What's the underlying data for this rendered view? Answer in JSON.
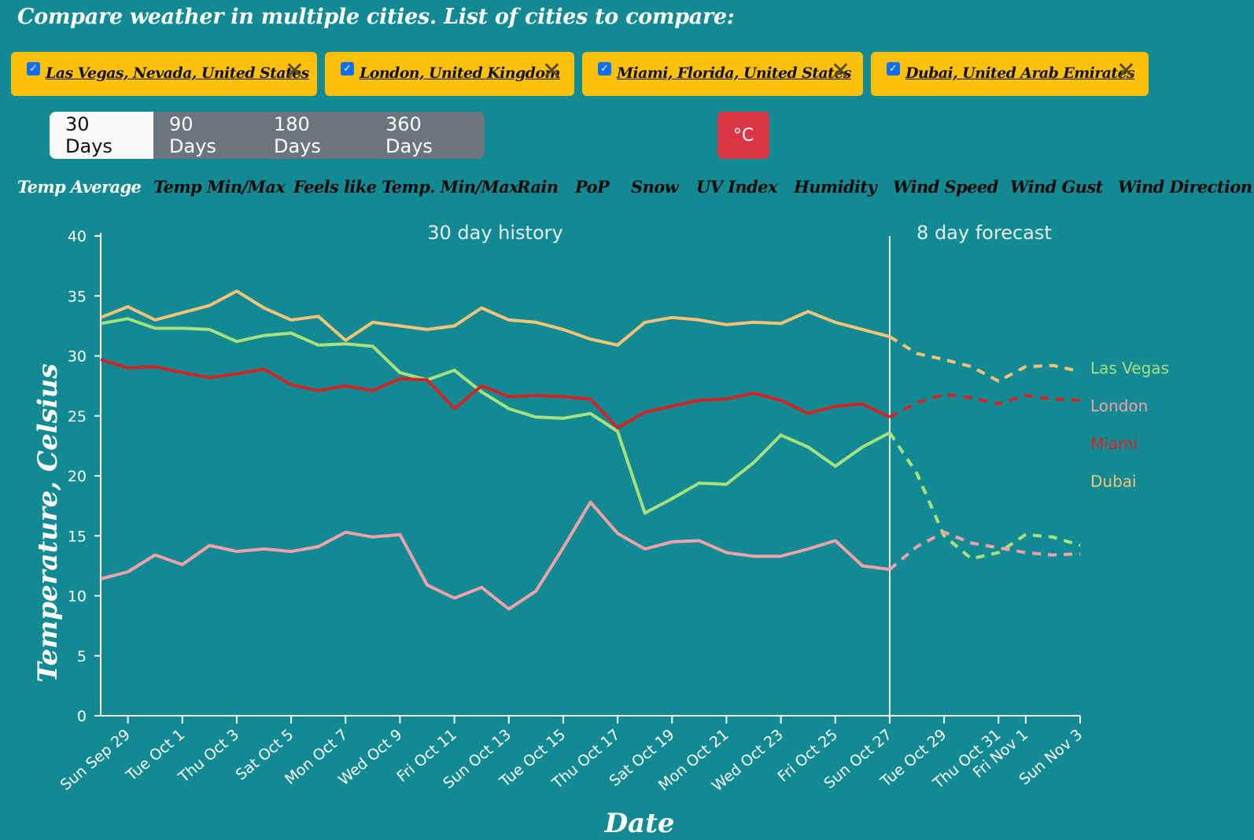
{
  "heading": "Compare weather in multiple cities. List of cities to compare:",
  "cities": [
    {
      "label": "Las Vegas, Nevada, United States",
      "checked": true
    },
    {
      "label": "London, United Kingdom",
      "checked": true
    },
    {
      "label": "Miami, Florida, United States",
      "checked": true
    },
    {
      "label": "Dubai, United Arab Emirates",
      "checked": true
    }
  ],
  "range_buttons": [
    "30 Days",
    "90 Days",
    "180 Days",
    "360 Days"
  ],
  "range_selected": "30 Days",
  "unit_button": "°C",
  "metric_tabs": [
    "Temp Average",
    "Temp Min/Max",
    "Feels like Temp. Min/Max",
    "Rain",
    "PoP",
    "Snow",
    "UV Index",
    "Humidity",
    "Wind Speed",
    "Wind Gust",
    "Wind Direction"
  ],
  "metric_selected": "Temp Average",
  "colors": {
    "background": "#118a93",
    "chip": "#ffc107",
    "unit": "#dc3545"
  },
  "chart_data": {
    "type": "line",
    "history_label": "30 day history",
    "forecast_label": "8 day forecast",
    "xlabel": "Date",
    "ylabel": "Temperature, Celsius",
    "ylim": [
      0,
      40
    ],
    "yticks": [
      0,
      5,
      10,
      15,
      20,
      25,
      30,
      35,
      40
    ],
    "x_start": "2024-09-28",
    "x_end": "2024-11-03",
    "split_date": "2024-10-27",
    "xticks": [
      {
        "date": "2024-09-29",
        "label": "Sun Sep 29"
      },
      {
        "date": "2024-10-01",
        "label": "Tue Oct 1"
      },
      {
        "date": "2024-10-03",
        "label": "Thu Oct 3"
      },
      {
        "date": "2024-10-05",
        "label": "Sat Oct 5"
      },
      {
        "date": "2024-10-07",
        "label": "Mon Oct 7"
      },
      {
        "date": "2024-10-09",
        "label": "Wed Oct 9"
      },
      {
        "date": "2024-10-11",
        "label": "Fri Oct 11"
      },
      {
        "date": "2024-10-13",
        "label": "Sun Oct 13"
      },
      {
        "date": "2024-10-15",
        "label": "Tue Oct 15"
      },
      {
        "date": "2024-10-17",
        "label": "Thu Oct 17"
      },
      {
        "date": "2024-10-19",
        "label": "Sat Oct 19"
      },
      {
        "date": "2024-10-21",
        "label": "Mon Oct 21"
      },
      {
        "date": "2024-10-23",
        "label": "Wed Oct 23"
      },
      {
        "date": "2024-10-25",
        "label": "Fri Oct 25"
      },
      {
        "date": "2024-10-27",
        "label": "Sun Oct 27"
      },
      {
        "date": "2024-10-29",
        "label": "Tue Oct 29"
      },
      {
        "date": "2024-10-31",
        "label": "Thu Oct 31"
      },
      {
        "date": "2024-11-01",
        "label": "Fri Nov 1"
      },
      {
        "date": "2024-11-03",
        "label": "Sun Nov 3"
      }
    ],
    "series": [
      {
        "name": "Las Vegas",
        "color": "#a8e07e",
        "history": [
          [
            "2024-09-28",
            32.7
          ],
          [
            "2024-09-29",
            33.1
          ],
          [
            "2024-09-30",
            32.3
          ],
          [
            "2024-10-01",
            32.3
          ],
          [
            "2024-10-02",
            32.2
          ],
          [
            "2024-10-03",
            31.2
          ],
          [
            "2024-10-04",
            31.7
          ],
          [
            "2024-10-05",
            31.9
          ],
          [
            "2024-10-06",
            30.9
          ],
          [
            "2024-10-07",
            31.0
          ],
          [
            "2024-10-08",
            30.8
          ],
          [
            "2024-10-09",
            28.6
          ],
          [
            "2024-10-10",
            28.0
          ],
          [
            "2024-10-11",
            28.8
          ],
          [
            "2024-10-12",
            27.0
          ],
          [
            "2024-10-13",
            25.6
          ],
          [
            "2024-10-14",
            24.9
          ],
          [
            "2024-10-15",
            24.8
          ],
          [
            "2024-10-16",
            25.2
          ],
          [
            "2024-10-17",
            23.7
          ],
          [
            "2024-10-18",
            16.9
          ],
          [
            "2024-10-19",
            18.1
          ],
          [
            "2024-10-20",
            19.4
          ],
          [
            "2024-10-21",
            19.3
          ],
          [
            "2024-10-22",
            21.1
          ],
          [
            "2024-10-23",
            23.4
          ],
          [
            "2024-10-24",
            22.4
          ],
          [
            "2024-10-25",
            20.8
          ],
          [
            "2024-10-26",
            22.4
          ],
          [
            "2024-10-27",
            23.6
          ]
        ],
        "forecast": [
          [
            "2024-10-27",
            23.6
          ],
          [
            "2024-10-28",
            20.2
          ],
          [
            "2024-10-29",
            15.0
          ],
          [
            "2024-10-30",
            13.1
          ],
          [
            "2024-10-31",
            13.6
          ],
          [
            "2024-11-01",
            15.1
          ],
          [
            "2024-11-02",
            14.9
          ],
          [
            "2024-11-03",
            14.2
          ]
        ]
      },
      {
        "name": "London",
        "color": "#f2a2a8",
        "history": [
          [
            "2024-09-28",
            11.4
          ],
          [
            "2024-09-29",
            12.0
          ],
          [
            "2024-09-30",
            13.4
          ],
          [
            "2024-10-01",
            12.6
          ],
          [
            "2024-10-02",
            14.2
          ],
          [
            "2024-10-03",
            13.7
          ],
          [
            "2024-10-04",
            13.9
          ],
          [
            "2024-10-05",
            13.7
          ],
          [
            "2024-10-06",
            14.1
          ],
          [
            "2024-10-07",
            15.3
          ],
          [
            "2024-10-08",
            14.9
          ],
          [
            "2024-10-09",
            15.1
          ],
          [
            "2024-10-10",
            10.9
          ],
          [
            "2024-10-11",
            9.8
          ],
          [
            "2024-10-12",
            10.7
          ],
          [
            "2024-10-13",
            8.9
          ],
          [
            "2024-10-14",
            10.4
          ],
          [
            "2024-10-15",
            14.0
          ],
          [
            "2024-10-16",
            17.8
          ],
          [
            "2024-10-17",
            15.2
          ],
          [
            "2024-10-18",
            13.9
          ],
          [
            "2024-10-19",
            14.5
          ],
          [
            "2024-10-20",
            14.6
          ],
          [
            "2024-10-21",
            13.6
          ],
          [
            "2024-10-22",
            13.3
          ],
          [
            "2024-10-23",
            13.3
          ],
          [
            "2024-10-24",
            13.9
          ],
          [
            "2024-10-25",
            14.6
          ],
          [
            "2024-10-26",
            12.5
          ],
          [
            "2024-10-27",
            12.2
          ]
        ],
        "forecast": [
          [
            "2024-10-27",
            12.2
          ],
          [
            "2024-10-28",
            14.1
          ],
          [
            "2024-10-29",
            15.3
          ],
          [
            "2024-10-30",
            14.4
          ],
          [
            "2024-10-31",
            14.0
          ],
          [
            "2024-11-01",
            13.6
          ],
          [
            "2024-11-02",
            13.4
          ],
          [
            "2024-11-03",
            13.5
          ]
        ]
      },
      {
        "name": "Miami",
        "color": "#d42323",
        "history": [
          [
            "2024-09-28",
            29.7
          ],
          [
            "2024-09-29",
            29.0
          ],
          [
            "2024-09-30",
            29.1
          ],
          [
            "2024-10-01",
            28.6
          ],
          [
            "2024-10-02",
            28.2
          ],
          [
            "2024-10-03",
            28.5
          ],
          [
            "2024-10-04",
            28.9
          ],
          [
            "2024-10-05",
            27.6
          ],
          [
            "2024-10-06",
            27.1
          ],
          [
            "2024-10-07",
            27.5
          ],
          [
            "2024-10-08",
            27.1
          ],
          [
            "2024-10-09",
            28.1
          ],
          [
            "2024-10-10",
            28.0
          ],
          [
            "2024-10-11",
            25.6
          ],
          [
            "2024-10-12",
            27.5
          ],
          [
            "2024-10-13",
            26.6
          ],
          [
            "2024-10-14",
            26.7
          ],
          [
            "2024-10-15",
            26.6
          ],
          [
            "2024-10-16",
            26.4
          ],
          [
            "2024-10-17",
            24.0
          ],
          [
            "2024-10-18",
            25.3
          ],
          [
            "2024-10-19",
            25.8
          ],
          [
            "2024-10-20",
            26.3
          ],
          [
            "2024-10-21",
            26.4
          ],
          [
            "2024-10-22",
            26.9
          ],
          [
            "2024-10-23",
            26.3
          ],
          [
            "2024-10-24",
            25.2
          ],
          [
            "2024-10-25",
            25.8
          ],
          [
            "2024-10-26",
            26.0
          ],
          [
            "2024-10-27",
            24.9
          ]
        ],
        "forecast": [
          [
            "2024-10-27",
            24.9
          ],
          [
            "2024-10-28",
            26.1
          ],
          [
            "2024-10-29",
            26.8
          ],
          [
            "2024-10-30",
            26.5
          ],
          [
            "2024-10-31",
            26.0
          ],
          [
            "2024-11-01",
            26.7
          ],
          [
            "2024-11-02",
            26.4
          ],
          [
            "2024-11-03",
            26.3
          ]
        ]
      },
      {
        "name": "Dubai",
        "color": "#f7c377",
        "history": [
          [
            "2024-09-28",
            33.2
          ],
          [
            "2024-09-29",
            34.1
          ],
          [
            "2024-09-30",
            33.0
          ],
          [
            "2024-10-01",
            33.6
          ],
          [
            "2024-10-02",
            34.2
          ],
          [
            "2024-10-03",
            35.4
          ],
          [
            "2024-10-04",
            34.0
          ],
          [
            "2024-10-05",
            33.0
          ],
          [
            "2024-10-06",
            33.3
          ],
          [
            "2024-10-07",
            31.3
          ],
          [
            "2024-10-08",
            32.8
          ],
          [
            "2024-10-09",
            32.5
          ],
          [
            "2024-10-10",
            32.2
          ],
          [
            "2024-10-11",
            32.5
          ],
          [
            "2024-10-12",
            34.0
          ],
          [
            "2024-10-13",
            33.0
          ],
          [
            "2024-10-14",
            32.8
          ],
          [
            "2024-10-15",
            32.2
          ],
          [
            "2024-10-16",
            31.4
          ],
          [
            "2024-10-17",
            30.9
          ],
          [
            "2024-10-18",
            32.8
          ],
          [
            "2024-10-19",
            33.2
          ],
          [
            "2024-10-20",
            33.0
          ],
          [
            "2024-10-21",
            32.6
          ],
          [
            "2024-10-22",
            32.8
          ],
          [
            "2024-10-23",
            32.7
          ],
          [
            "2024-10-24",
            33.7
          ],
          [
            "2024-10-25",
            32.8
          ],
          [
            "2024-10-26",
            32.2
          ],
          [
            "2024-10-27",
            31.6
          ]
        ],
        "forecast": [
          [
            "2024-10-27",
            31.6
          ],
          [
            "2024-10-28",
            30.2
          ],
          [
            "2024-10-29",
            29.7
          ],
          [
            "2024-10-30",
            29.1
          ],
          [
            "2024-10-31",
            27.9
          ],
          [
            "2024-11-01",
            29.1
          ],
          [
            "2024-11-02",
            29.2
          ],
          [
            "2024-11-03",
            28.7
          ]
        ]
      }
    ]
  }
}
